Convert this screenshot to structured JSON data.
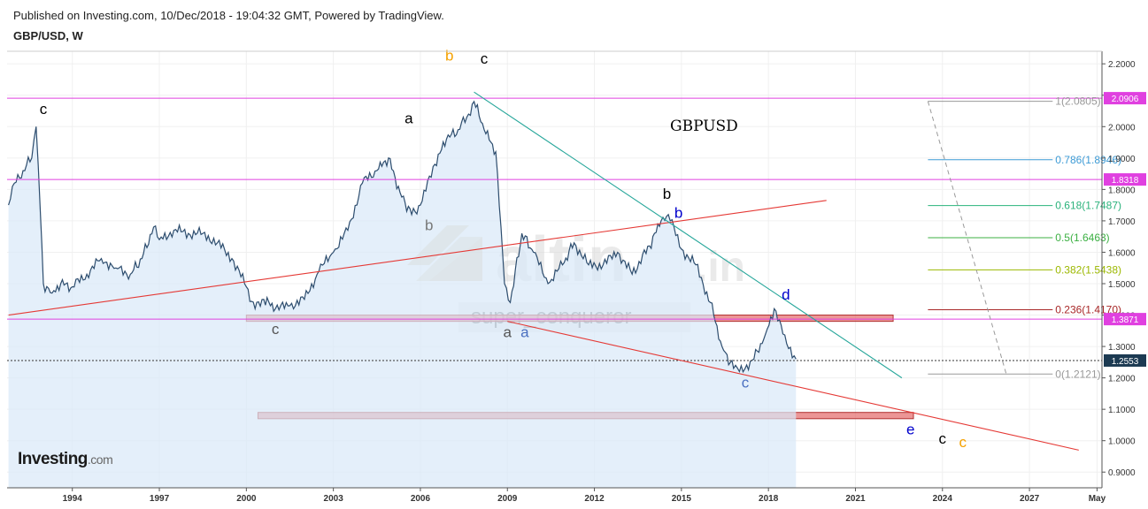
{
  "header": {
    "published": "Published on Investing.com, 10/Dec/2018 - 19:04:32 GMT, Powered by TradingView.",
    "symbol": "GBP/USD, W"
  },
  "logo": {
    "investing": "Investing",
    "dotcom": ".com"
  },
  "watermark": {
    "brand": "altin",
    "tld": ".in",
    "user": "super_conqueror"
  },
  "chart_data": {
    "type": "line",
    "title": "GBPUSD",
    "x_ticks": [
      "1994",
      "1997",
      "2000",
      "2003",
      "2006",
      "2009",
      "2012",
      "2015",
      "2018",
      "2021",
      "2024",
      "2027",
      "May"
    ],
    "y_ticks": [
      "0.9000",
      "1.0000",
      "1.1000",
      "1.2000",
      "1.3000",
      "1.4000",
      "1.5000",
      "1.6000",
      "1.7000",
      "1.8000",
      "1.9000",
      "2.0000",
      "2.1000",
      "2.2000"
    ],
    "ylim": [
      0.85,
      2.24
    ],
    "xlim": [
      1991.75,
      2029.5
    ],
    "series": [
      {
        "x": [
          1991.8,
          1992.0,
          1992.3,
          1992.6,
          1992.75,
          1992.9,
          1993.0,
          1993.3,
          1993.6,
          1994.0,
          1994.5,
          1995.0,
          1995.5,
          1996.0,
          1996.4,
          1996.8,
          1997.0,
          1997.5,
          1998.0,
          1998.5,
          1999.0,
          1999.5,
          2000.0,
          2000.3,
          2000.6,
          2001.0,
          2001.5,
          2002.0,
          2002.5,
          2003.0,
          2003.5,
          2004.0,
          2004.5,
          2004.9,
          2005.3,
          2005.7,
          2006.0,
          2006.5,
          2006.9,
          2007.3,
          2007.6,
          2007.85,
          2008.2,
          2008.6,
          2008.9,
          2009.1,
          2009.5,
          2009.9,
          2010.4,
          2010.9,
          2011.3,
          2011.8,
          2012.3,
          2012.8,
          2013.3,
          2013.9,
          2014.3,
          2014.55,
          2015.0,
          2015.5,
          2016.0,
          2016.4,
          2016.8,
          2017.0,
          2017.5,
          2017.9,
          2018.2,
          2018.5,
          2018.95
        ],
        "values": [
          1.75,
          1.82,
          1.86,
          1.9,
          2.0,
          1.72,
          1.5,
          1.47,
          1.5,
          1.49,
          1.53,
          1.58,
          1.55,
          1.53,
          1.58,
          1.68,
          1.64,
          1.67,
          1.66,
          1.66,
          1.63,
          1.58,
          1.49,
          1.42,
          1.45,
          1.42,
          1.43,
          1.45,
          1.54,
          1.6,
          1.67,
          1.82,
          1.86,
          1.9,
          1.79,
          1.72,
          1.75,
          1.88,
          1.96,
          1.99,
          2.03,
          2.08,
          1.99,
          1.92,
          1.5,
          1.44,
          1.66,
          1.6,
          1.5,
          1.56,
          1.63,
          1.56,
          1.56,
          1.6,
          1.53,
          1.62,
          1.7,
          1.72,
          1.61,
          1.56,
          1.44,
          1.3,
          1.23,
          1.22,
          1.26,
          1.34,
          1.42,
          1.34,
          1.26
        ]
      }
    ],
    "wave_labels": [
      {
        "text": "c",
        "x": 1993.0,
        "y": 2.04,
        "color": "#000000"
      },
      {
        "text": "a",
        "x": 2005.6,
        "y": 2.01,
        "color": "#000000"
      },
      {
        "text": "b",
        "x": 2007.0,
        "y": 2.21,
        "color": "#f5a100"
      },
      {
        "text": "c",
        "x": 2008.2,
        "y": 2.2,
        "color": "#000000"
      },
      {
        "text": "b",
        "x": 2006.3,
        "y": 1.67,
        "color": "#777777"
      },
      {
        "text": "c",
        "x": 2001.0,
        "y": 1.34,
        "color": "#555555"
      },
      {
        "text": "a",
        "x": 2009.0,
        "y": 1.33,
        "color": "#555555"
      },
      {
        "text": "a",
        "x": 2009.6,
        "y": 1.33,
        "color": "#4a6fc0"
      },
      {
        "text": "b",
        "x": 2014.5,
        "y": 1.77,
        "color": "#000000"
      },
      {
        "text": "b",
        "x": 2014.9,
        "y": 1.71,
        "color": "#0000cc"
      },
      {
        "text": "c",
        "x": 2017.2,
        "y": 1.17,
        "color": "#4a6fc0"
      },
      {
        "text": "d",
        "x": 2018.6,
        "y": 1.45,
        "color": "#0000cc"
      },
      {
        "text": "e",
        "x": 2022.9,
        "y": 1.02,
        "color": "#0000cc"
      },
      {
        "text": "c",
        "x": 2024.0,
        "y": 0.99,
        "color": "#000000"
      },
      {
        "text": "c",
        "x": 2024.7,
        "y": 0.98,
        "color": "#f5a100"
      }
    ],
    "price_levels": [
      {
        "label": "2.0906",
        "value": 2.0906,
        "color": "#e040e0"
      },
      {
        "label": "1.8318",
        "value": 1.8318,
        "color": "#e040e0"
      },
      {
        "label": "1.3871",
        "value": 1.3871,
        "color": "#e040e0"
      }
    ],
    "current_price": {
      "label": "1.2553",
      "value": 1.2553
    },
    "fib_levels": [
      {
        "label": "1(2.0805)",
        "value": 2.0805,
        "color": "#999999"
      },
      {
        "label": "0.786(1.8946)",
        "value": 1.8946,
        "color": "#3d9bd6"
      },
      {
        "label": "0.618(1.7487)",
        "value": 1.7487,
        "color": "#2ab27b"
      },
      {
        "label": "0.5(1.6463)",
        "value": 1.6463,
        "color": "#3cb043"
      },
      {
        "label": "0.382(1.5438)",
        "value": 1.5438,
        "color": "#9cb800"
      },
      {
        "label": "0.236(1.4170)",
        "value": 1.417,
        "color": "#a82828"
      },
      {
        "label": "0(1.2121)",
        "value": 1.2121,
        "color": "#999999"
      }
    ],
    "trendlines": [
      {
        "x1": 1991.8,
        "y1": 1.4,
        "x2": 2020.0,
        "y2": 1.765,
        "color": "#e53935"
      },
      {
        "x1": 2007.85,
        "y1": 2.11,
        "x2": 2022.6,
        "y2": 1.2,
        "color": "#26a69a"
      },
      {
        "x1": 2009.0,
        "y1": 1.38,
        "x2": 2028.7,
        "y2": 0.97,
        "color": "#e53935"
      }
    ],
    "zones": [
      {
        "x1": 2000.0,
        "x2": 2022.3,
        "y1": 1.38,
        "y2": 1.4,
        "color": "#e57373"
      },
      {
        "x1": 2000.4,
        "x2": 2023.0,
        "y1": 1.07,
        "y2": 1.09,
        "color": "#e57373"
      }
    ],
    "fib_projection": {
      "x1": 2023.5,
      "y1": 2.0805,
      "x2": 2026.2,
      "y2": 1.2121
    }
  }
}
